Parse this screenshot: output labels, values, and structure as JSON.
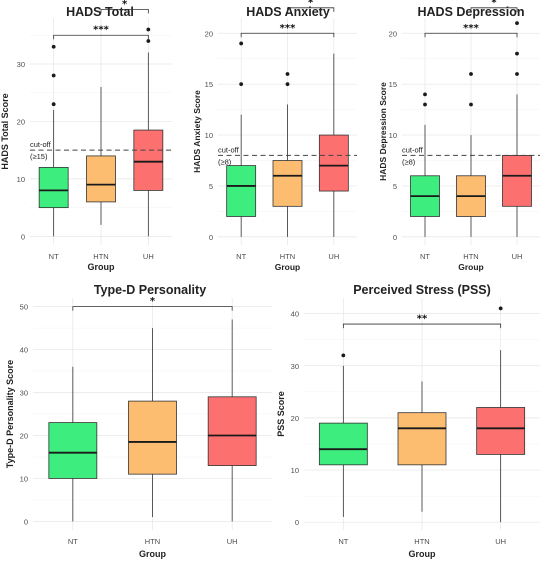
{
  "colors": {
    "NT": "#3ded7e",
    "HTN": "#fdbd71",
    "UH": "#fd7070"
  },
  "chart_data": [
    {
      "type": "box",
      "title": "HADS Total",
      "xlabel": "Group",
      "ylabel": "HADS Total Score",
      "ylim": [
        -1.5,
        38
      ],
      "yticks": [
        0,
        10,
        20,
        30
      ],
      "categories": [
        "NT",
        "HTN",
        "UH"
      ],
      "boxes": [
        {
          "group": "NT",
          "min": 0,
          "q1": 5,
          "median": 8,
          "q3": 12,
          "max": 22,
          "outliers": [
            23,
            28,
            33
          ]
        },
        {
          "group": "HTN",
          "min": 2,
          "q1": 6,
          "median": 9,
          "q3": 14,
          "max": 26,
          "outliers": []
        },
        {
          "group": "UH",
          "min": 0,
          "q1": 8,
          "median": 13,
          "q3": 18.5,
          "max": 32,
          "outliers": [
            34,
            36
          ]
        }
      ],
      "cutoff": {
        "value": 15,
        "label_line1": "cut-off",
        "label_line2": "(≥15)"
      },
      "brackets": [
        {
          "from": "HTN",
          "to": "UH",
          "label": "*",
          "y": 39.5
        },
        {
          "from": "NT",
          "to": "UH",
          "label": "***",
          "y": 35
        }
      ]
    },
    {
      "type": "box",
      "title": "HADS Anxiety",
      "xlabel": "Group",
      "ylabel": "HADS Anxiety Score",
      "ylim": [
        -0.8,
        21.5
      ],
      "yticks": [
        0,
        5,
        10,
        15,
        20
      ],
      "categories": [
        "NT",
        "HTN",
        "UH"
      ],
      "boxes": [
        {
          "group": "NT",
          "min": 0,
          "q1": 2,
          "median": 5,
          "q3": 7,
          "max": 12,
          "outliers": [
            15,
            19
          ]
        },
        {
          "group": "HTN",
          "min": 0,
          "q1": 3,
          "median": 6,
          "q3": 7.5,
          "max": 13,
          "outliers": [
            15,
            16
          ]
        },
        {
          "group": "UH",
          "min": 0,
          "q1": 4.5,
          "median": 7,
          "q3": 10,
          "max": 18,
          "outliers": []
        }
      ],
      "cutoff": {
        "value": 8,
        "label_line1": "cut-off",
        "label_line2": "(≥8)"
      },
      "brackets": [
        {
          "from": "HTN",
          "to": "UH",
          "label": "*",
          "y": 22.5
        },
        {
          "from": "NT",
          "to": "UH",
          "label": "***",
          "y": 20
        }
      ]
    },
    {
      "type": "box",
      "title": "HADS Depression",
      "xlabel": "Group",
      "ylabel": "HADS Depression Score",
      "ylim": [
        -0.8,
        21.5
      ],
      "yticks": [
        0,
        5,
        10,
        15,
        20
      ],
      "categories": [
        "NT",
        "HTN",
        "UH"
      ],
      "boxes": [
        {
          "group": "NT",
          "min": 0,
          "q1": 2,
          "median": 4,
          "q3": 6,
          "max": 11,
          "outliers": [
            13,
            14
          ]
        },
        {
          "group": "HTN",
          "min": 0,
          "q1": 2,
          "median": 4,
          "q3": 6,
          "max": 10,
          "outliers": [
            13,
            16
          ]
        },
        {
          "group": "UH",
          "min": 0,
          "q1": 3,
          "median": 6,
          "q3": 8,
          "max": 14,
          "outliers": [
            16,
            18,
            21
          ]
        }
      ],
      "cutoff": {
        "value": 8,
        "label_line1": "cut-off",
        "label_line2": "(≥8)"
      },
      "brackets": [
        {
          "from": "HTN",
          "to": "UH",
          "label": "*",
          "y": 22.5
        },
        {
          "from": "NT",
          "to": "UH",
          "label": "***",
          "y": 20
        }
      ]
    },
    {
      "type": "box",
      "title": "Type-D Personality",
      "xlabel": "Group",
      "ylabel": "Type-D Personality Score",
      "ylim": [
        -2,
        52
      ],
      "yticks": [
        0,
        10,
        20,
        30,
        40,
        50
      ],
      "categories": [
        "NT",
        "HTN",
        "UH"
      ],
      "boxes": [
        {
          "group": "NT",
          "min": 0,
          "q1": 10,
          "median": 16,
          "q3": 23,
          "max": 36,
          "outliers": []
        },
        {
          "group": "HTN",
          "min": 1,
          "q1": 11,
          "median": 18.5,
          "q3": 28,
          "max": 45,
          "outliers": []
        },
        {
          "group": "UH",
          "min": 0,
          "q1": 13,
          "median": 20,
          "q3": 29,
          "max": 47,
          "outliers": []
        }
      ],
      "brackets": [
        {
          "from": "NT",
          "to": "UH",
          "label": "*",
          "y": 50
        }
      ]
    },
    {
      "type": "box",
      "title": "Perceived Stress (PSS)",
      "xlabel": "Group",
      "ylabel": "PSS Score",
      "ylim": [
        -1.5,
        43
      ],
      "yticks": [
        0,
        10,
        20,
        30,
        40
      ],
      "categories": [
        "NT",
        "HTN",
        "UH"
      ],
      "boxes": [
        {
          "group": "NT",
          "min": 1,
          "q1": 11,
          "median": 14,
          "q3": 19,
          "max": 30,
          "outliers": [
            32
          ]
        },
        {
          "group": "HTN",
          "min": 2,
          "q1": 11,
          "median": 18,
          "q3": 21,
          "max": 27,
          "outliers": []
        },
        {
          "group": "UH",
          "min": 0,
          "q1": 13,
          "median": 18,
          "q3": 22,
          "max": 33,
          "outliers": [
            41
          ]
        }
      ],
      "brackets": [
        {
          "from": "NT",
          "to": "UH",
          "label": "**",
          "y": 38
        }
      ]
    }
  ]
}
